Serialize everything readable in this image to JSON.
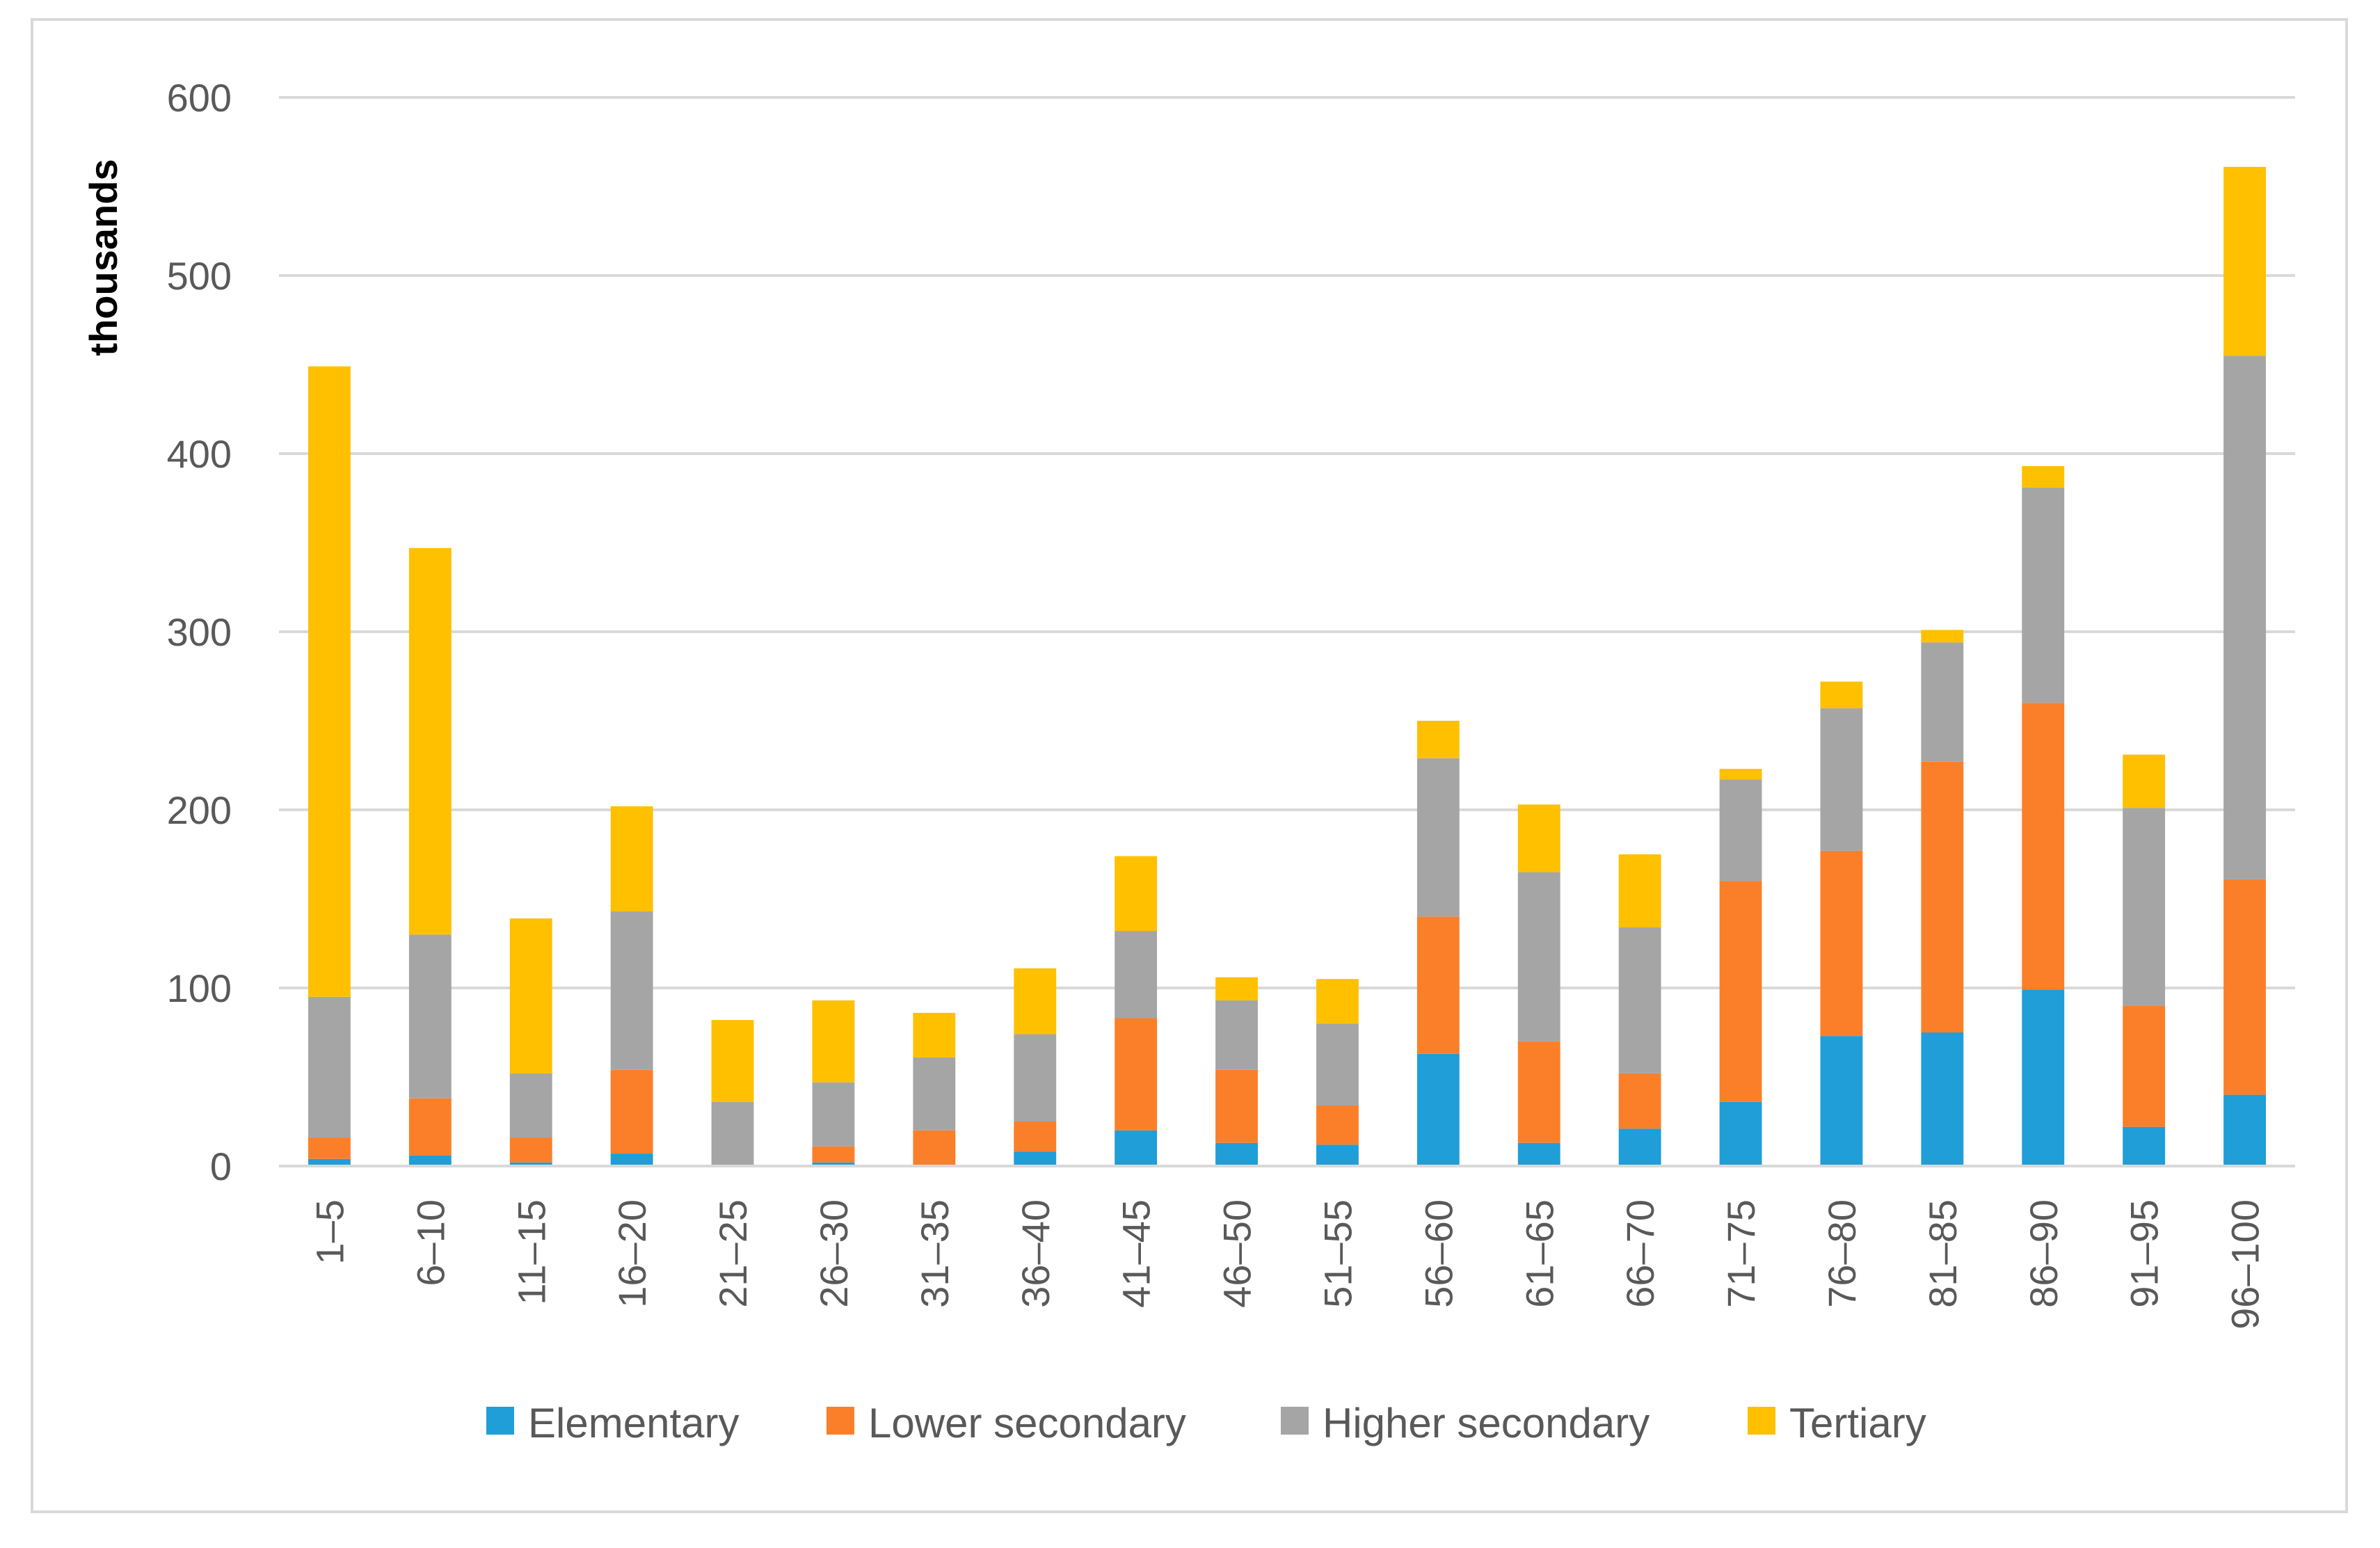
{
  "chart_data": {
    "type": "bar",
    "stacked": true,
    "title": "",
    "xlabel": "",
    "ylabel": "thousands",
    "ylim": [
      0,
      600
    ],
    "yticks": [
      0,
      100,
      200,
      300,
      400,
      500,
      600
    ],
    "grid": true,
    "legend_position": "bottom",
    "categories": [
      "1–5",
      "6–10",
      "11–15",
      "16–20",
      "21–25",
      "26–30",
      "31–35",
      "36–40",
      "41–45",
      "46–50",
      "51–55",
      "56–60",
      "61–65",
      "66–70",
      "71–75",
      "76–80",
      "81–85",
      "86–90",
      "91–95",
      "96–100"
    ],
    "series": [
      {
        "name": "Elementary",
        "color": "#1f9ed8",
        "values": [
          4,
          6,
          2,
          7,
          0,
          2,
          0,
          8,
          20,
          13,
          12,
          63,
          13,
          21,
          36,
          73,
          75,
          99,
          22,
          40
        ]
      },
      {
        "name": "Lower secondary",
        "color": "#fb7f29",
        "values": [
          12,
          32,
          14,
          47,
          0,
          9,
          20,
          17,
          63,
          41,
          22,
          77,
          57,
          31,
          124,
          104,
          152,
          161,
          68,
          121
        ]
      },
      {
        "name": "Higher secondary",
        "color": "#a5a5a5",
        "values": [
          79,
          92,
          36,
          89,
          36,
          36,
          41,
          49,
          49,
          39,
          46,
          89,
          95,
          82,
          57,
          80,
          67,
          121,
          111,
          294
        ]
      },
      {
        "name": "Tertiary",
        "color": "#ffc000",
        "values": [
          354,
          217,
          87,
          59,
          46,
          46,
          25,
          37,
          42,
          13,
          25,
          21,
          38,
          41,
          6,
          15,
          7,
          12,
          30,
          106
        ]
      }
    ]
  }
}
